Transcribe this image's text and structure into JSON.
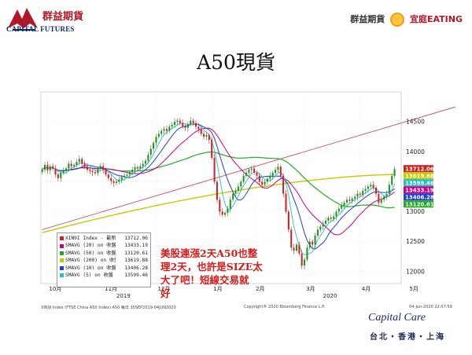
{
  "header": {
    "brand_cn": "群益期貨",
    "brand_en": "CAPITAL FUTURES",
    "right_left": "群益期貨",
    "right_right": "宜庭EATING"
  },
  "title": "A50現貨",
  "annotation_lines": [
    "美股連漲2天A50也整",
    "理2天，也許是SIZE太",
    "大了吧！短線交易就",
    "好"
  ],
  "footer": {
    "source_left": "XIN9I Index (FTSE China A50 Index) A50  每日 30SEP2019-04JUN2020",
    "copyright": "Copyright® 2020 Bloomberg Finance L.P.",
    "timestamp": "04-Jun-2020 22:07:59",
    "cc_logo": "Capital Care",
    "cc_cities": "台北・香港・上海"
  },
  "colors": {
    "brand_red": "#b0182a",
    "brand_blue": "#0b2a6b",
    "annotation": "#d81b1b",
    "candle_up": "#1f8f1f",
    "candle_down": "#d02020"
  },
  "chart_data": {
    "type": "candlestick",
    "title": "",
    "xlabel": "",
    "ylabel": "",
    "ylim": [
      11800,
      15000
    ],
    "yticks": [
      12000,
      12500,
      13000,
      13500,
      14000,
      14500
    ],
    "xticks": [
      {
        "label": "10月",
        "idx": 2
      },
      {
        "label": "11月",
        "idx": 23
      },
      {
        "label": "12月",
        "idx": 43
      },
      {
        "label": "1月",
        "idx": 64
      },
      {
        "label": "2月",
        "idx": 80
      },
      {
        "label": "3月",
        "idx": 99
      },
      {
        "label": "4月",
        "idx": 120
      },
      {
        "label": "5月",
        "idx": 138
      }
    ],
    "year_labels": [
      {
        "label": "2019",
        "idx": 28
      },
      {
        "label": "2020",
        "idx": 106
      }
    ],
    "close": [
      13700,
      13780,
      13690,
      13760,
      13720,
      13620,
      13560,
      13650,
      13680,
      13720,
      13800,
      13760,
      13780,
      13830,
      13880,
      13800,
      13750,
      13700,
      13680,
      13660,
      13640,
      13720,
      13760,
      13700,
      13620,
      13560,
      13510,
      13480,
      13500,
      13530,
      13580,
      13600,
      13620,
      13660,
      13700,
      13740,
      13720,
      13760,
      13800,
      13850,
      13950,
      14050,
      14150,
      14250,
      14300,
      14350,
      14380,
      14350,
      14420,
      14450,
      14500,
      14520,
      14480,
      14430,
      14400,
      14460,
      14520,
      14480,
      14420,
      14380,
      14300,
      14250,
      14280,
      14200,
      13900,
      13500,
      13200,
      13000,
      12950,
      12980,
      13050,
      13200,
      13300,
      13350,
      13420,
      13500,
      13600,
      13650,
      13700,
      13720,
      13650,
      13600,
      13500,
      13450,
      13500,
      13550,
      13600,
      13650,
      13700,
      13750,
      13600,
      13300,
      13000,
      12700,
      12400,
      12350,
      12450,
      12300,
      12100,
      12200,
      12400,
      12500,
      12450,
      12600,
      12700,
      12750,
      12800,
      12850,
      12900,
      12880,
      12920,
      13000,
      13050,
      13100,
      13150,
      13200,
      13180,
      13220,
      13250,
      13300,
      13280,
      13350,
      13380,
      13420,
      13450,
      13400,
      13300,
      13150,
      13200,
      13250,
      13300,
      13450,
      13600,
      13712
    ],
    "series": [
      {
        "name": "XIN9I Index - 最新價",
        "value": "13712.06",
        "color": "#d02020"
      },
      {
        "name": "SMAVG (20) on 收盤",
        "value": "13433.19",
        "color": "#cc0088"
      },
      {
        "name": "SMAVG (50) on 收盤",
        "value": "13120.61",
        "color": "#22aa22"
      },
      {
        "name": "SMAVG (200) on 收盤",
        "value": "13619.88",
        "color": "#c8c800"
      },
      {
        "name": "SMAVG (10) on 收盤",
        "value": "13406.28",
        "color": "#1f3fd0"
      },
      {
        "name": "SMAVG (5) on 收盤",
        "value": "13599.46",
        "color": "#22c0c0"
      }
    ],
    "right_labels": [
      {
        "value": "13712.06",
        "y": 13712.06,
        "color": "#d02020"
      },
      {
        "value": "13619.88",
        "y": 13619.88,
        "color": "#c8c800"
      },
      {
        "value": "13599.46",
        "y": 13599.46,
        "color": "#22c0c0"
      },
      {
        "value": "13433.19",
        "y": 13433.19,
        "color": "#cc0088"
      },
      {
        "value": "13406.28",
        "y": 13406.28,
        "color": "#1f3fd0"
      },
      {
        "value": "13120.61",
        "y": 13120.61,
        "color": "#22aa22"
      }
    ],
    "trendline": {
      "start": {
        "idx": 0,
        "y": 12700
      },
      "end": {
        "idx": 156,
        "y": 14750
      }
    }
  }
}
